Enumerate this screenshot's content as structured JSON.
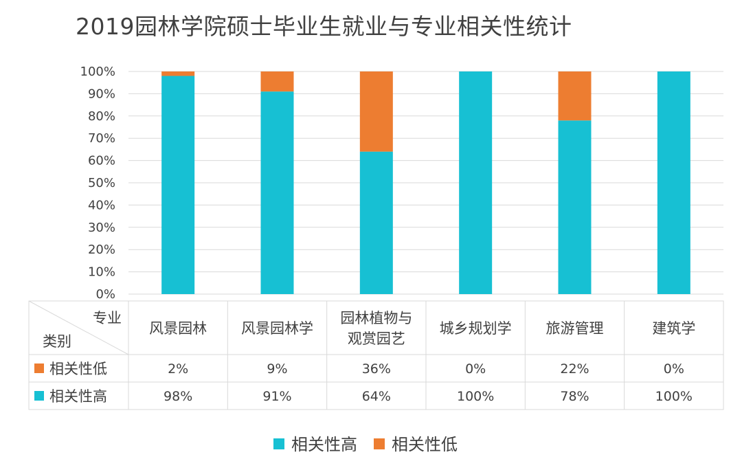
{
  "title": "2019园林学院硕士毕业生就业与专业相关性统计",
  "table_header": {
    "column_label": "专业",
    "row_label": "类别"
  },
  "chart_data": {
    "type": "bar",
    "stacked": true,
    "title": "2019园林学院硕士毕业生就业与专业相关性统计",
    "categories": [
      [
        "风景园林"
      ],
      [
        "风景园林学"
      ],
      [
        "园林植物与",
        "观赏园艺"
      ],
      [
        "城乡规划学"
      ],
      [
        "旅游管理"
      ],
      [
        "建筑学"
      ]
    ],
    "series": [
      {
        "name": "相关性高",
        "color": "#17c0d3",
        "values": [
          98,
          91,
          64,
          100,
          78,
          100
        ],
        "labels": [
          "98%",
          "91%",
          "64%",
          "100%",
          "78%",
          "100%"
        ]
      },
      {
        "name": "相关性低",
        "color": "#ed7d31",
        "values": [
          2,
          9,
          36,
          0,
          22,
          0
        ],
        "labels": [
          "2%",
          "9%",
          "36%",
          "0%",
          "22%",
          "0%"
        ]
      }
    ],
    "table_row_order": [
      1,
      0
    ],
    "legend_order": [
      0,
      1
    ],
    "ylim": [
      0,
      100
    ],
    "yticks": [
      "0%",
      "10%",
      "20%",
      "30%",
      "40%",
      "50%",
      "60%",
      "70%",
      "80%",
      "90%",
      "100%"
    ],
    "grid": true,
    "legend_position": "bottom"
  }
}
